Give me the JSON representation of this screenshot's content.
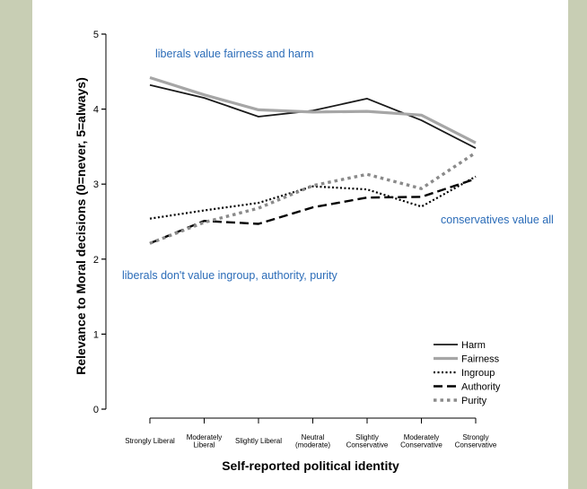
{
  "chart_data": {
    "type": "line",
    "title": "",
    "xlabel": "Self-reported political identity",
    "ylabel": "Relevance to Moral decisions (0=never, 5=always)",
    "ylim": [
      0,
      5
    ],
    "yticks": [
      "0",
      "1",
      "2",
      "3",
      "4",
      "5"
    ],
    "categories": [
      [
        "Strongly Liberal"
      ],
      [
        "Moderately",
        "Liberal"
      ],
      [
        "Slightly Liberal"
      ],
      [
        "Neutral",
        "(moderate)"
      ],
      [
        "Slightly",
        "Conservative"
      ],
      [
        "Moderately",
        "Conservative"
      ],
      [
        "Strongly",
        "Conservative"
      ]
    ],
    "series": [
      {
        "name": "Harm",
        "values": [
          4.32,
          4.15,
          3.9,
          3.98,
          4.14,
          3.85,
          3.48
        ],
        "color": "#1a1a1a",
        "style": "solid"
      },
      {
        "name": "Fairness",
        "values": [
          4.42,
          4.19,
          3.99,
          3.96,
          3.97,
          3.92,
          3.55
        ],
        "color": "#a6a6a6",
        "style": "solid-thick"
      },
      {
        "name": "Ingroup",
        "values": [
          2.54,
          2.65,
          2.75,
          2.97,
          2.93,
          2.7,
          3.1
        ],
        "color": "#000000",
        "style": "dotted"
      },
      {
        "name": "Authority",
        "values": [
          2.21,
          2.51,
          2.47,
          2.69,
          2.82,
          2.83,
          3.07
        ],
        "color": "#000000",
        "style": "dashed"
      },
      {
        "name": "Purity",
        "values": [
          2.21,
          2.49,
          2.68,
          2.98,
          3.13,
          2.94,
          3.42
        ],
        "color": "#8a8a8a",
        "style": "dotted-thick"
      }
    ],
    "annotations": [
      "liberals value fairness and harm",
      "conservatives value all",
      "liberals don't value ingroup, authority, purity"
    ],
    "legend_position": "bottom-right",
    "grid": false
  }
}
